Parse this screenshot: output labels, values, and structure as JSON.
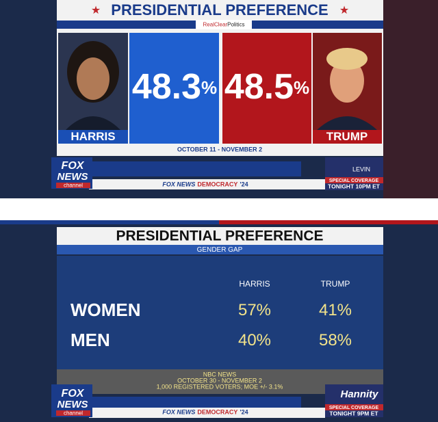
{
  "panel1": {
    "title": "PRESIDENTIAL PREFERENCE",
    "source_brand": "RealClear",
    "source_suffix": "Politics",
    "candidates": [
      {
        "name": "HARRIS",
        "value": 48.3,
        "unit": "%"
      },
      {
        "name": "TRUMP",
        "value": 48.5,
        "unit": "%"
      }
    ],
    "dates": "OCTOBER 11 - NOVEMBER 2",
    "logo": {
      "top": "FOX",
      "middle": "NEWS",
      "bottom": "channel"
    },
    "ticker": {
      "brand": "FOX NEWS",
      "tag": "DEMOCRACY",
      "year": "'24"
    },
    "promo": {
      "show": "LEVIN",
      "line1": "SPECIAL COVERAGE",
      "line2": "TONIGHT 10PM ET"
    }
  },
  "panel2": {
    "title": "PRESIDENTIAL PREFERENCE",
    "subtitle": "GENDER GAP",
    "columns": [
      "HARRIS",
      "TRUMP"
    ],
    "rows": [
      {
        "label": "WOMEN",
        "values": [
          57,
          41
        ]
      },
      {
        "label": "MEN",
        "values": [
          40,
          58
        ]
      }
    ],
    "unit": "%",
    "source": [
      "NBC NEWS",
      "OCTOBER 30 - NOVEMBER 2",
      "1,000 REGISTERED VOTERS; MOE +/- 3.1%"
    ],
    "logo": {
      "top": "FOX",
      "middle": "NEWS",
      "bottom": "channel"
    },
    "ticker": {
      "brand": "FOX NEWS",
      "tag": "DEMOCRACY",
      "year": "'24"
    },
    "promo": {
      "show": "Hannity",
      "line1": "SPECIAL COVERAGE",
      "line2": "TONIGHT 9PM ET"
    }
  }
}
